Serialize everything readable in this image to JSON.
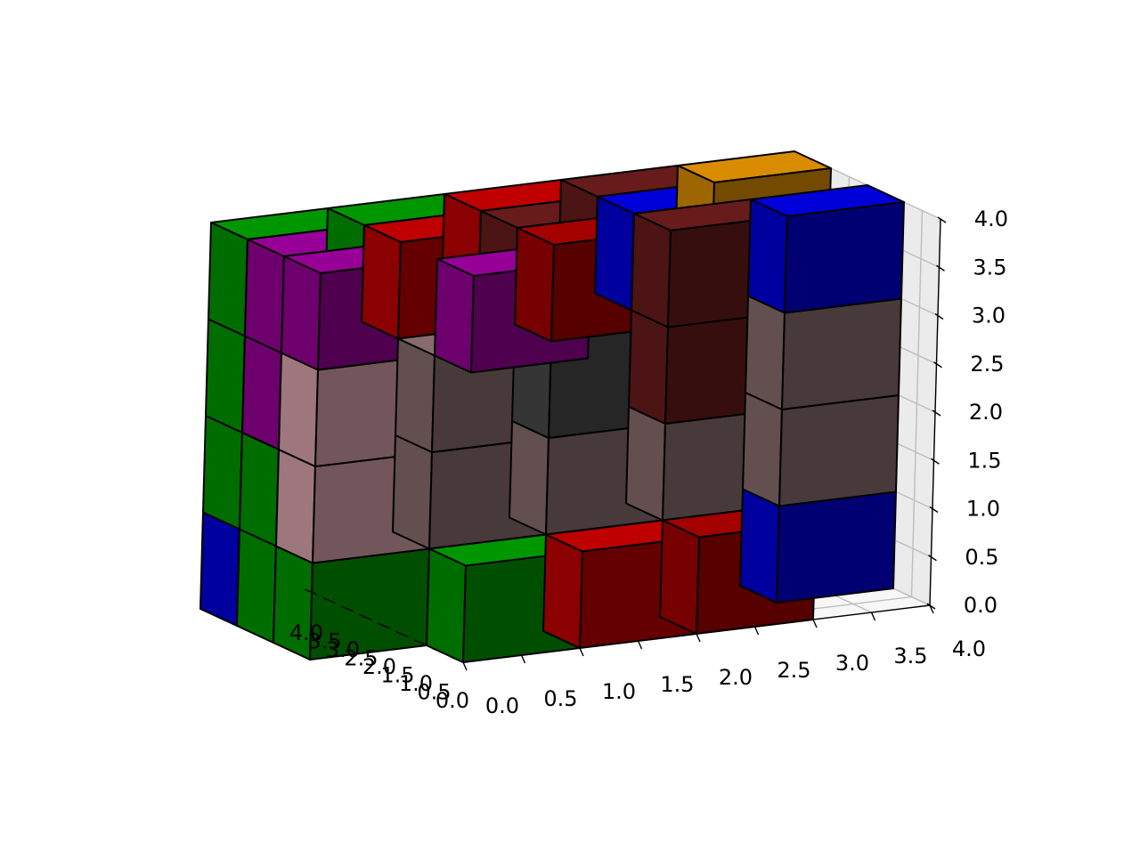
{
  "chart_data": {
    "type": "voxel",
    "title": "",
    "xlabel": "",
    "ylabel": "",
    "zlabel": "",
    "x_ticks": [
      "0.0",
      "0.5",
      "1.0",
      "1.5",
      "2.0",
      "2.5",
      "3.0",
      "3.5",
      "4.0"
    ],
    "y_ticks": [
      "0.0",
      "0.5",
      "1.0",
      "1.5",
      "2.0",
      "2.5",
      "3.0",
      "3.5",
      "4.0"
    ],
    "z_ticks": [
      "0.0",
      "0.5",
      "1.0",
      "1.5",
      "2.0",
      "2.5",
      "3.0",
      "3.5",
      "4.0"
    ],
    "xlim": [
      0,
      4
    ],
    "ylim": [
      0,
      4
    ],
    "zlim": [
      0,
      4
    ],
    "grid": true,
    "view": {
      "elev": 10,
      "azim": -75
    },
    "palette": {
      "green": "#00b000",
      "purple": "#b000b0",
      "red": "#e00000",
      "maroon": "#c00000",
      "darkred": "#7a2020",
      "blue": "#0000ff",
      "pink": "#ffc0cb",
      "taupe": "#a07f80",
      "gray": "#555555",
      "brick": "#c03030",
      "orange": "#ffa500"
    },
    "voxels": [
      {
        "x": 0,
        "y": 0,
        "z": 0,
        "c": "green"
      },
      {
        "x": 1,
        "y": 0,
        "z": 0,
        "c": "red"
      },
      {
        "x": 2,
        "y": 0,
        "z": 0,
        "c": "maroon"
      },
      {
        "x": 3,
        "y": 1,
        "z": 0,
        "c": "blue"
      },
      {
        "x": 0,
        "y": 0,
        "z": 3,
        "c": "purple"
      },
      {
        "x": 2,
        "y": 1,
        "z": 2,
        "c": "darkred"
      },
      {
        "x": 0,
        "y": 1,
        "z": 1,
        "c": "taupe"
      },
      {
        "x": 1,
        "y": 1,
        "z": 1,
        "c": "taupe"
      },
      {
        "x": 2,
        "y": 1,
        "z": 1,
        "c": "taupe"
      },
      {
        "x": 3,
        "y": 1,
        "z": 1,
        "c": "taupe"
      },
      {
        "x": 0,
        "y": 1,
        "z": 2,
        "c": "taupe"
      },
      {
        "x": 1,
        "y": 1,
        "z": 2,
        "c": "gray"
      },
      {
        "x": 3,
        "y": 1,
        "z": 2,
        "c": "taupe"
      },
      {
        "x": 1,
        "y": 1,
        "z": 3,
        "c": "maroon"
      },
      {
        "x": 2,
        "y": 1,
        "z": 3,
        "c": "darkred"
      },
      {
        "x": 3,
        "y": 1,
        "z": 3,
        "c": "blue"
      },
      {
        "x": -1,
        "y": 1,
        "z": 0,
        "c": "green"
      },
      {
        "x": -1,
        "y": 1,
        "z": 1,
        "c": "pink"
      },
      {
        "x": -1,
        "y": 1,
        "z": 2,
        "c": "pink"
      },
      {
        "x": -1,
        "y": 1,
        "z": 3,
        "c": "purple"
      },
      {
        "x": -1,
        "y": 2,
        "z": 0,
        "c": "green"
      },
      {
        "x": -1,
        "y": 2,
        "z": 1,
        "c": "green"
      },
      {
        "x": -1,
        "y": 2,
        "z": 2,
        "c": "purple"
      },
      {
        "x": -1,
        "y": 2,
        "z": 3,
        "c": "purple"
      },
      {
        "x": -1,
        "y": 3,
        "z": 0,
        "c": "blue"
      },
      {
        "x": -1,
        "y": 3,
        "z": 1,
        "c": "green"
      },
      {
        "x": -1,
        "y": 3,
        "z": 2,
        "c": "green"
      },
      {
        "x": -1,
        "y": 3,
        "z": 3,
        "c": "green"
      },
      {
        "x": 0,
        "y": 2,
        "z": 3,
        "c": "red"
      },
      {
        "x": 1,
        "y": 2,
        "z": 3,
        "c": "darkred"
      },
      {
        "x": 2,
        "y": 2,
        "z": 3,
        "c": "blue"
      },
      {
        "x": 0,
        "y": 3,
        "z": 3,
        "c": "green"
      },
      {
        "x": 1,
        "y": 3,
        "z": 3,
        "c": "red"
      },
      {
        "x": 2,
        "y": 3,
        "z": 3,
        "c": "darkred"
      },
      {
        "x": 3,
        "y": 3,
        "z": 3,
        "c": "orange"
      }
    ]
  }
}
